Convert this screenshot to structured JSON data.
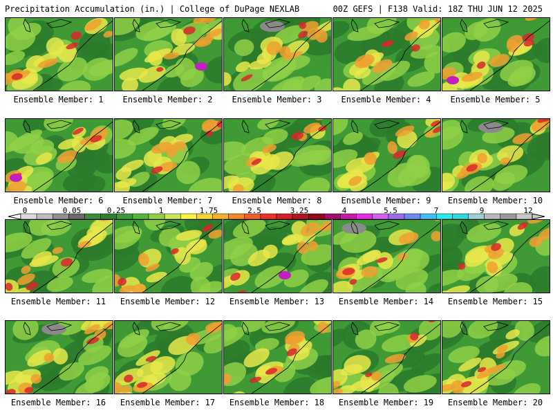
{
  "header": {
    "left": "Precipitation Accumulation (in.) | College of DuPage NEXLAB",
    "right": "00Z GEFS | F138 Valid: 18Z THU JUN 12 2025"
  },
  "panels": [
    {
      "caption": "Ensemble Member: 1"
    },
    {
      "caption": "Ensemble Member: 2"
    },
    {
      "caption": "Ensemble Member: 3"
    },
    {
      "caption": "Ensemble Member: 4"
    },
    {
      "caption": "Ensemble Member: 5"
    },
    {
      "caption": "Ensemble Member: 6"
    },
    {
      "caption": "Ensemble Member: 7"
    },
    {
      "caption": "Ensemble Member: 8"
    },
    {
      "caption": "Ensemble Member: 9"
    },
    {
      "caption": "Ensemble Member: 10"
    },
    {
      "caption": "Ensemble Member: 11"
    },
    {
      "caption": "Ensemble Member: 12"
    },
    {
      "caption": "Ensemble Member: 13"
    },
    {
      "caption": "Ensemble Member: 14"
    },
    {
      "caption": "Ensemble Member: 15"
    },
    {
      "caption": "Ensemble Member: 16"
    },
    {
      "caption": "Ensemble Member: 17"
    },
    {
      "caption": "Ensemble Member: 18"
    },
    {
      "caption": "Ensemble Member: 19"
    },
    {
      "caption": "Ensemble Member: 20"
    }
  ],
  "colorbar": {
    "labels": [
      "0",
      "0.05",
      "0.25",
      "1",
      "1.75",
      "2.5",
      "3.25",
      "4",
      "5.5",
      "7",
      "9",
      "12"
    ],
    "colors": [
      "#d9d9d9",
      "#bdbdbd",
      "#8f8f8f",
      "#6a6a6a",
      "#3c8a3c",
      "#2f7d2f",
      "#3a9a3a",
      "#55b53a",
      "#8fd046",
      "#c8e65a",
      "#f5f542",
      "#f5d634",
      "#f5b02e",
      "#f28a2c",
      "#ee5f2a",
      "#e8322a",
      "#d01f25",
      "#b0141e",
      "#8e0a18",
      "#a0106a",
      "#c41aa6",
      "#e02ee0",
      "#d060f0",
      "#9a6cf0",
      "#6c8af0",
      "#40c0f0",
      "#28e8f0",
      "#30d8d8",
      "#9ad0d0",
      "#b8b8b8",
      "#9a9a9a",
      "#c8c8c8"
    ]
  },
  "palette": {
    "map_base": "#3f9a36",
    "dark_green": "#2b7a2b",
    "light_green": "#8fd046",
    "yellow": "#e8e84a",
    "orange": "#f0a030",
    "red": "#d8282a",
    "magenta": "#c020c0",
    "gray": "#8a8a8a"
  }
}
